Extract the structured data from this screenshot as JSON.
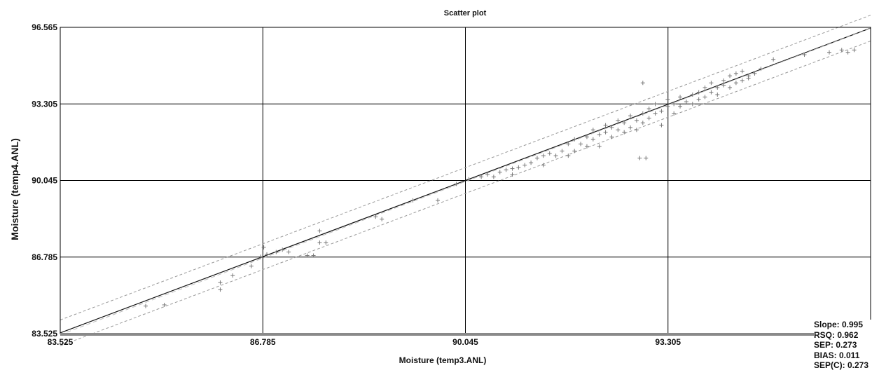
{
  "chart_data": {
    "type": "scatter",
    "title": "Scatter plot",
    "xlabel": "Moisture (temp3.ANL)",
    "ylabel": "Moisture (temp4.ANL)",
    "xlim": [
      83.525,
      96.565
    ],
    "ylim": [
      83.525,
      96.565
    ],
    "xticks": [
      "83.525",
      "86.785",
      "90.045",
      "93.305"
    ],
    "yticks": [
      "96.565",
      "93.305",
      "90.045",
      "86.785",
      "83.525"
    ],
    "grid": true,
    "regression_line": {
      "slope": 0.995,
      "intercept": 0.45
    },
    "confidence_band": {
      "offset": 0.55
    },
    "series": [
      {
        "marker": "+",
        "color": "#777777",
        "points": [
          [
            84.9,
            84.7
          ],
          [
            85.2,
            84.75
          ],
          [
            86.1,
            85.4
          ],
          [
            86.1,
            85.7
          ],
          [
            86.3,
            86.0
          ],
          [
            86.6,
            86.4
          ],
          [
            86.75,
            86.8
          ],
          [
            86.8,
            87.2
          ],
          [
            86.85,
            86.9
          ],
          [
            87.0,
            87.0
          ],
          [
            87.1,
            87.1
          ],
          [
            87.2,
            87.0
          ],
          [
            87.5,
            86.85
          ],
          [
            87.6,
            86.85
          ],
          [
            87.7,
            87.4
          ],
          [
            87.7,
            87.9
          ],
          [
            87.8,
            87.4
          ],
          [
            88.6,
            88.5
          ],
          [
            88.7,
            88.4
          ],
          [
            89.2,
            89.2
          ],
          [
            89.6,
            89.2
          ],
          [
            89.9,
            89.9
          ],
          [
            90.1,
            90.1
          ],
          [
            90.3,
            90.2
          ],
          [
            90.4,
            90.3
          ],
          [
            90.5,
            90.2
          ],
          [
            90.6,
            90.4
          ],
          [
            90.7,
            90.5
          ],
          [
            90.8,
            90.55
          ],
          [
            90.8,
            90.3
          ],
          [
            90.9,
            90.6
          ],
          [
            91.0,
            90.7
          ],
          [
            91.1,
            90.8
          ],
          [
            91.2,
            91.0
          ],
          [
            91.3,
            90.7
          ],
          [
            91.3,
            91.1
          ],
          [
            91.4,
            91.2
          ],
          [
            91.5,
            91.1
          ],
          [
            91.6,
            91.3
          ],
          [
            91.7,
            91.1
          ],
          [
            91.7,
            91.6
          ],
          [
            91.8,
            91.3
          ],
          [
            91.8,
            91.8
          ],
          [
            91.9,
            91.6
          ],
          [
            92.0,
            91.5
          ],
          [
            92.0,
            91.9
          ],
          [
            92.1,
            91.8
          ],
          [
            92.1,
            92.2
          ],
          [
            92.2,
            92.0
          ],
          [
            92.2,
            91.5
          ],
          [
            92.3,
            92.1
          ],
          [
            92.3,
            92.4
          ],
          [
            92.4,
            92.3
          ],
          [
            92.4,
            91.9
          ],
          [
            92.5,
            92.6
          ],
          [
            92.5,
            92.2
          ],
          [
            92.6,
            92.5
          ],
          [
            92.6,
            92.1
          ],
          [
            92.7,
            92.3
          ],
          [
            92.7,
            92.8
          ],
          [
            92.8,
            92.6
          ],
          [
            92.8,
            92.2
          ],
          [
            92.85,
            91.0
          ],
          [
            92.95,
            91.0
          ],
          [
            92.9,
            92.9
          ],
          [
            92.9,
            92.5
          ],
          [
            92.9,
            94.2
          ],
          [
            93.0,
            92.7
          ],
          [
            93.0,
            93.1
          ],
          [
            93.1,
            92.9
          ],
          [
            93.1,
            93.3
          ],
          [
            93.2,
            92.4
          ],
          [
            93.2,
            93.0
          ],
          [
            93.3,
            93.2
          ],
          [
            93.3,
            93.5
          ],
          [
            93.4,
            93.3
          ],
          [
            93.4,
            92.9
          ],
          [
            93.5,
            93.6
          ],
          [
            93.5,
            93.2
          ],
          [
            93.6,
            93.4
          ],
          [
            93.7,
            93.7
          ],
          [
            93.7,
            93.3
          ],
          [
            93.8,
            93.8
          ],
          [
            93.8,
            93.5
          ],
          [
            93.9,
            93.6
          ],
          [
            93.9,
            94.0
          ],
          [
            94.0,
            93.8
          ],
          [
            94.0,
            94.2
          ],
          [
            94.1,
            94.0
          ],
          [
            94.1,
            93.7
          ],
          [
            94.2,
            94.3
          ],
          [
            94.2,
            94.1
          ],
          [
            94.3,
            94.0
          ],
          [
            94.3,
            94.5
          ],
          [
            94.4,
            94.2
          ],
          [
            94.4,
            94.6
          ],
          [
            94.5,
            94.3
          ],
          [
            94.5,
            94.7
          ],
          [
            94.6,
            94.5
          ],
          [
            94.6,
            94.4
          ],
          [
            94.7,
            94.6
          ],
          [
            94.8,
            94.8
          ],
          [
            95.0,
            95.2
          ],
          [
            95.5,
            95.4
          ],
          [
            95.9,
            95.5
          ],
          [
            96.1,
            95.6
          ],
          [
            96.2,
            95.5
          ],
          [
            96.3,
            95.6
          ]
        ]
      }
    ]
  },
  "stats": [
    "Slope: 0.995",
    "RSQ: 0.962",
    "SEP: 0.273",
    "BIAS: 0.011",
    "SEP(C): 0.273"
  ]
}
